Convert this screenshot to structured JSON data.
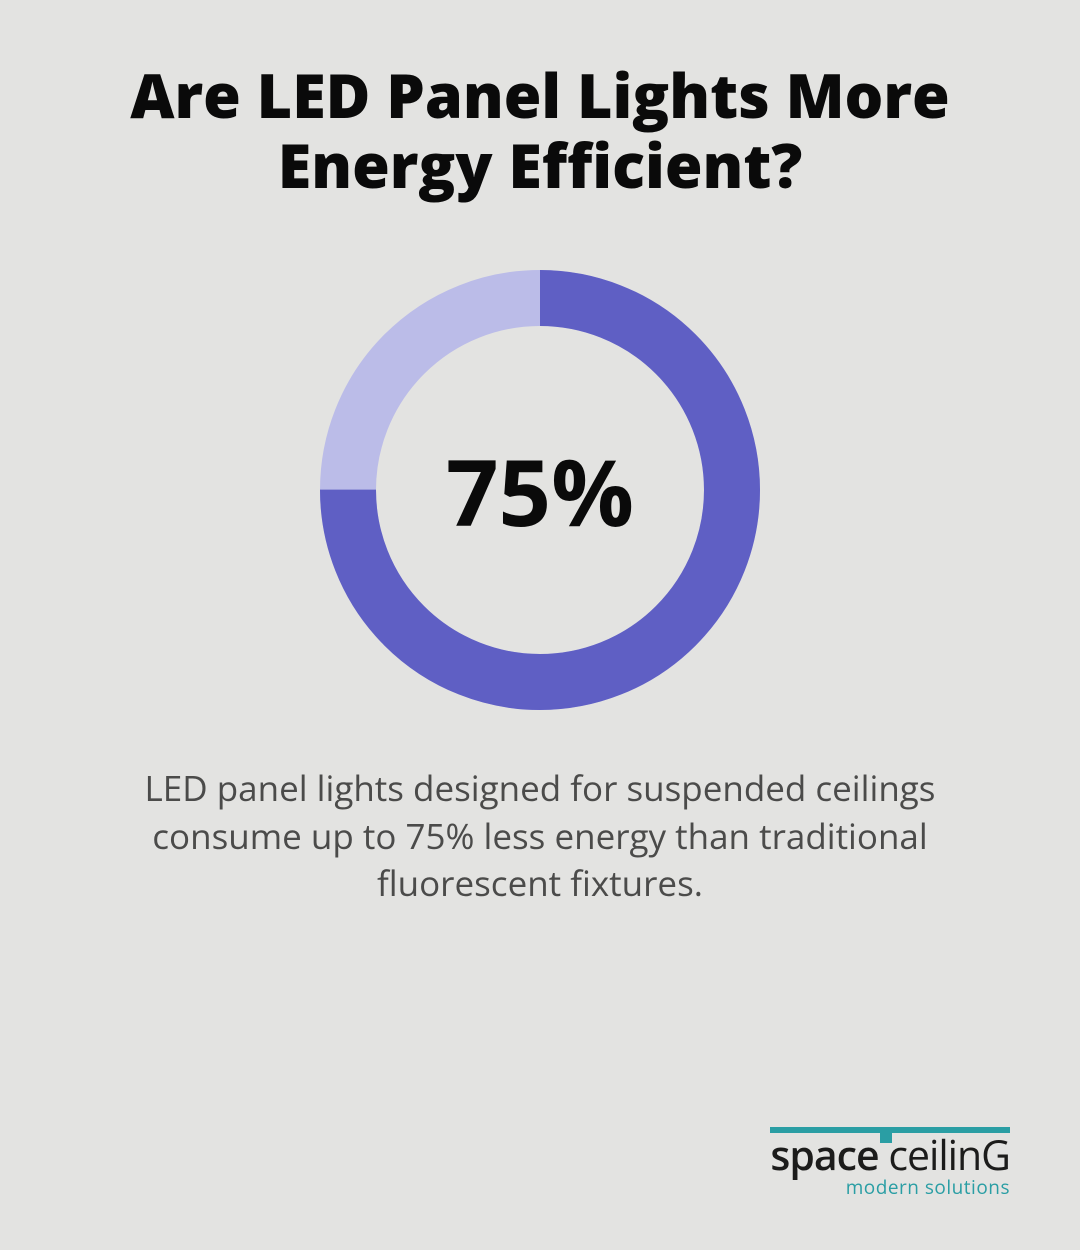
{
  "title": "Are LED Panel Lights More Energy Efficient?",
  "title_fontsize": 61,
  "donut": {
    "type": "donut",
    "percent": 75,
    "center_label": "75%",
    "center_fontsize": 92,
    "size": 440,
    "stroke_width": 56,
    "fill_color": "#5f5fc4",
    "track_color": "#bbbce8",
    "start_angle_deg": 0
  },
  "body_text": "LED panel lights designed for suspended ceilings consume up to 75% less energy than traditional fluorescent fixtures.",
  "body_fontsize": 35,
  "body_color": "#4b4b4a",
  "background_color": "#e3e3e1",
  "logo": {
    "main_a": "space",
    "main_b": " ceilinG",
    "main_fontsize": 41,
    "sub": "modern solutions",
    "sub_fontsize": 19,
    "accent_color": "#2a9ea4",
    "text_color": "#1c1c1b"
  }
}
